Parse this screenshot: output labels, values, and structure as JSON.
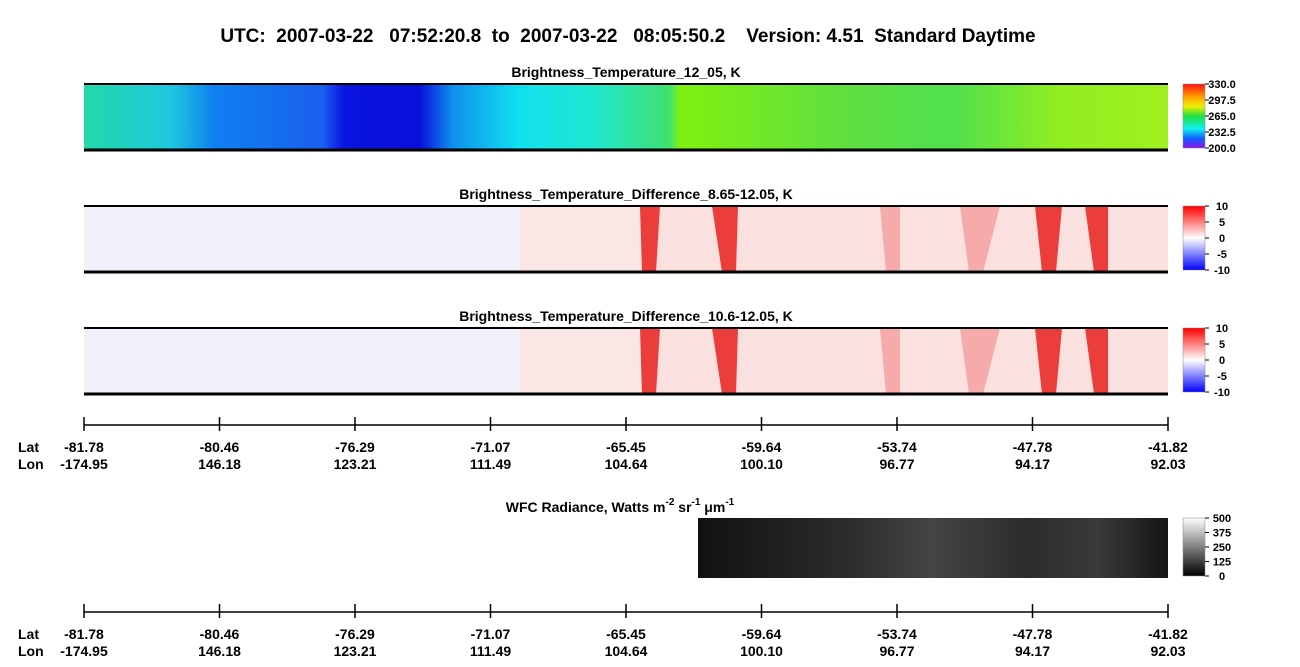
{
  "title": "UTC:  2007-03-22   07:52:20.8  to  2007-03-22   08:05:50.2    Version: 4.51  Standard Daytime",
  "panels": [
    {
      "title": "Brightness_Temperature_12_05, K",
      "colorbar_ticks": [
        {
          "value": 330,
          "label": "330.0"
        },
        {
          "value": 297.5,
          "label": "297.5"
        },
        {
          "value": 265,
          "label": "265.0"
        },
        {
          "value": 232.5,
          "label": "232.5"
        },
        {
          "value": 200,
          "label": "200.0"
        }
      ]
    },
    {
      "title": "Brightness_Temperature_Difference_8.65-12.05, K",
      "colorbar_ticks": [
        10,
        5,
        0,
        -5,
        -10
      ]
    },
    {
      "title": "Brightness_Temperature_Difference_10.6-12.05, K",
      "colorbar_ticks": [
        10,
        5,
        0,
        -5,
        -10
      ]
    }
  ],
  "axes": [
    {
      "lat_label": "Lat",
      "lon_label": "Lon",
      "lat": [
        "-81.78",
        "-80.46",
        "-76.29",
        "-71.07",
        "-65.45",
        "-59.64",
        "-53.74",
        "-47.78",
        "-41.82"
      ],
      "lon": [
        "-174.95",
        "146.18",
        "123.21",
        "111.49",
        "104.64",
        "100.10",
        "96.77",
        "94.17",
        "92.03"
      ]
    },
    {
      "lat_label": "Lat",
      "lon_label": "Lon",
      "lat": [
        "-81.78",
        "-80.46",
        "-76.29",
        "-71.07",
        "-65.45",
        "-59.64",
        "-53.74",
        "-47.78",
        "-41.82"
      ],
      "lon": [
        "-174.95",
        "146.18",
        "123.21",
        "111.49",
        "104.64",
        "100.10",
        "96.77",
        "94.17",
        "92.03"
      ]
    }
  ],
  "wfc": {
    "title_parts": [
      "WFC Radiance, Watts m",
      "-2",
      " sr",
      "-1",
      " μm",
      "-1"
    ],
    "colorbar_ticks": [
      500,
      375,
      250,
      125,
      0
    ]
  }
}
